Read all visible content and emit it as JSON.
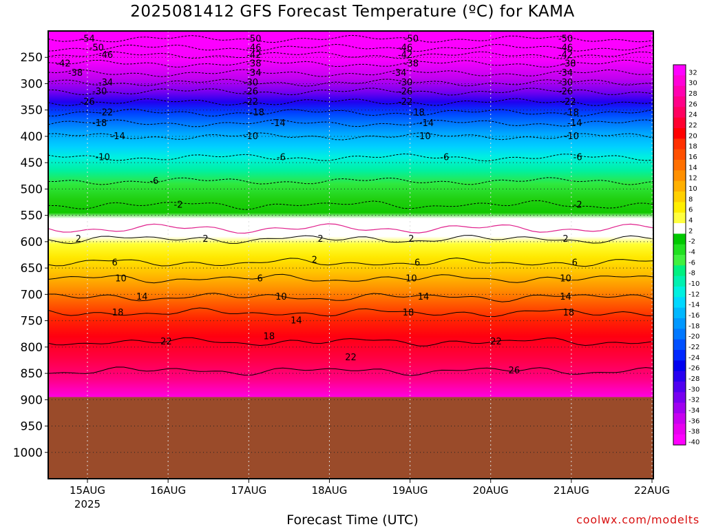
{
  "header": {
    "title": "2025081412 GFS Forecast Temperature (ºC) for KAMA"
  },
  "footer": {
    "xlabel": "Forecast Time (UTC)",
    "credit": "coolwx.com/modelts"
  },
  "chart_data": {
    "type": "heatmap",
    "title": "2025081412 GFS Forecast Temperature (ºC) for KAMA",
    "xlabel": "Forecast Time (UTC)",
    "ylabel": "",
    "x_ticks": [
      "15AUG",
      "16AUG",
      "17AUG",
      "18AUG",
      "19AUG",
      "20AUG",
      "21AUG",
      "22AUG"
    ],
    "x_tick_sub": [
      "2025",
      "",
      "",
      "",
      "",
      "",
      "",
      ""
    ],
    "x_start": "2025-08-14 12Z",
    "x_end": "2025-08-22 00Z",
    "y_ticks": [
      250,
      300,
      350,
      400,
      450,
      500,
      550,
      600,
      650,
      700,
      750,
      800,
      850,
      900,
      950,
      1000
    ],
    "y_top": 200,
    "y_bottom": 1050,
    "y_unit": "hPa",
    "terrain_below": 895,
    "terrain_color": "#9a4b2a",
    "grid": true,
    "colorbar": {
      "labels": [
        32,
        30,
        28,
        26,
        24,
        22,
        20,
        18,
        16,
        14,
        12,
        10,
        8,
        6,
        4,
        2,
        -2,
        -4,
        -6,
        -8,
        -10,
        -12,
        -14,
        -16,
        -18,
        -20,
        -22,
        -24,
        -26,
        -28,
        -30,
        -32,
        -34,
        -36,
        -38,
        -40
      ],
      "colors": [
        "#ff00ff",
        "#ff00d8",
        "#ff00b0",
        "#ff0088",
        "#ff0060",
        "#ff0030",
        "#ff0000",
        "#ff3000",
        "#ff5000",
        "#ff7000",
        "#ff9000",
        "#ffb000",
        "#ffd000",
        "#ffee00",
        "#ffff40",
        "#ffffff",
        "#00c800",
        "#20e020",
        "#40f040",
        "#00f080",
        "#00f0b0",
        "#00f0e0",
        "#00d8ff",
        "#00b8ff",
        "#0098ff",
        "#0078ff",
        "#0050ff",
        "#0028ff",
        "#0000f0",
        "#2800f0",
        "#5000f0",
        "#7800f0",
        "#a000f0",
        "#c800f0",
        "#e800f0",
        "#ff00ff"
      ]
    },
    "isotherms": [
      {
        "t": -54,
        "p": 215
      },
      {
        "t": -50,
        "p": 232
      },
      {
        "t": -46,
        "p": 246
      },
      {
        "t": -42,
        "p": 262
      },
      {
        "t": -38,
        "p": 280
      },
      {
        "t": -34,
        "p": 298
      },
      {
        "t": -30,
        "p": 315
      },
      {
        "t": -26,
        "p": 335
      },
      {
        "t": -22,
        "p": 355
      },
      {
        "t": -18,
        "p": 375
      },
      {
        "t": -14,
        "p": 400
      },
      {
        "t": -10,
        "p": 440
      },
      {
        "t": -6,
        "p": 485
      },
      {
        "t": -2,
        "p": 530
      },
      {
        "t": 2,
        "p": 595
      },
      {
        "t": 6,
        "p": 640
      },
      {
        "t": 10,
        "p": 670
      },
      {
        "t": 14,
        "p": 705
      },
      {
        "t": 18,
        "p": 735
      },
      {
        "t": 22,
        "p": 790
      },
      {
        "t": 26,
        "p": 845
      }
    ],
    "contour_labels": [
      {
        "t": "-54",
        "x": 0.065,
        "p": 215
      },
      {
        "t": "-50",
        "x": 0.08,
        "p": 232
      },
      {
        "t": "-46",
        "x": 0.095,
        "p": 246
      },
      {
        "t": "-42",
        "x": 0.025,
        "p": 262
      },
      {
        "t": "-38",
        "x": 0.045,
        "p": 280
      },
      {
        "t": "-34",
        "x": 0.095,
        "p": 298
      },
      {
        "t": "-30",
        "x": 0.085,
        "p": 315
      },
      {
        "t": "-26",
        "x": 0.065,
        "p": 335
      },
      {
        "t": "-22",
        "x": 0.095,
        "p": 355
      },
      {
        "t": "-18",
        "x": 0.085,
        "p": 375
      },
      {
        "t": "-14",
        "x": 0.115,
        "p": 400
      },
      {
        "t": "-10",
        "x": 0.09,
        "p": 440
      },
      {
        "t": "-50",
        "x": 0.34,
        "p": 215
      },
      {
        "t": "-46",
        "x": 0.34,
        "p": 232
      },
      {
        "t": "-42",
        "x": 0.34,
        "p": 246
      },
      {
        "t": "-38",
        "x": 0.34,
        "p": 262
      },
      {
        "t": "-34",
        "x": 0.34,
        "p": 280
      },
      {
        "t": "-30",
        "x": 0.335,
        "p": 298
      },
      {
        "t": "-26",
        "x": 0.335,
        "p": 315
      },
      {
        "t": "-22",
        "x": 0.335,
        "p": 335
      },
      {
        "t": "-18",
        "x": 0.345,
        "p": 355
      },
      {
        "t": "-14",
        "x": 0.38,
        "p": 375
      },
      {
        "t": "-10",
        "x": 0.335,
        "p": 400
      },
      {
        "t": "-6",
        "x": 0.385,
        "p": 440
      },
      {
        "t": "-6",
        "x": 0.175,
        "p": 485
      },
      {
        "t": "-2",
        "x": 0.215,
        "p": 530
      },
      {
        "t": "2",
        "x": 0.05,
        "p": 595
      },
      {
        "t": "2",
        "x": 0.26,
        "p": 595
      },
      {
        "t": "2",
        "x": 0.45,
        "p": 595
      },
      {
        "t": "2",
        "x": 0.44,
        "p": 635
      },
      {
        "t": "6",
        "x": 0.11,
        "p": 640
      },
      {
        "t": "6",
        "x": 0.35,
        "p": 670
      },
      {
        "t": "10",
        "x": 0.12,
        "p": 670
      },
      {
        "t": "10",
        "x": 0.385,
        "p": 705
      },
      {
        "t": "14",
        "x": 0.155,
        "p": 705
      },
      {
        "t": "14",
        "x": 0.41,
        "p": 750
      },
      {
        "t": "18",
        "x": 0.115,
        "p": 735
      },
      {
        "t": "18",
        "x": 0.365,
        "p": 780
      },
      {
        "t": "22",
        "x": 0.195,
        "p": 790
      },
      {
        "t": "22",
        "x": 0.5,
        "p": 820
      },
      {
        "t": "-50",
        "x": 0.6,
        "p": 215
      },
      {
        "t": "-46",
        "x": 0.59,
        "p": 232
      },
      {
        "t": "-42",
        "x": 0.59,
        "p": 246
      },
      {
        "t": "-38",
        "x": 0.6,
        "p": 262
      },
      {
        "t": "-34",
        "x": 0.58,
        "p": 280
      },
      {
        "t": "-30",
        "x": 0.59,
        "p": 298
      },
      {
        "t": "-26",
        "x": 0.59,
        "p": 315
      },
      {
        "t": "-22",
        "x": 0.59,
        "p": 335
      },
      {
        "t": "-18",
        "x": 0.61,
        "p": 355
      },
      {
        "t": "-14",
        "x": 0.625,
        "p": 375
      },
      {
        "t": "-10",
        "x": 0.62,
        "p": 400
      },
      {
        "t": "-6",
        "x": 0.655,
        "p": 440
      },
      {
        "t": "2",
        "x": 0.6,
        "p": 595
      },
      {
        "t": "6",
        "x": 0.61,
        "p": 640
      },
      {
        "t": "10",
        "x": 0.6,
        "p": 670
      },
      {
        "t": "14",
        "x": 0.62,
        "p": 705
      },
      {
        "t": "18",
        "x": 0.595,
        "p": 735
      },
      {
        "t": "26",
        "x": 0.77,
        "p": 845
      },
      {
        "t": "22",
        "x": 0.74,
        "p": 790
      },
      {
        "t": "-50",
        "x": 0.855,
        "p": 215
      },
      {
        "t": "-46",
        "x": 0.855,
        "p": 232
      },
      {
        "t": "-42",
        "x": 0.855,
        "p": 246
      },
      {
        "t": "-38",
        "x": 0.86,
        "p": 262
      },
      {
        "t": "-34",
        "x": 0.855,
        "p": 280
      },
      {
        "t": "-30",
        "x": 0.855,
        "p": 298
      },
      {
        "t": "-26",
        "x": 0.855,
        "p": 315
      },
      {
        "t": "-22",
        "x": 0.86,
        "p": 335
      },
      {
        "t": "-18",
        "x": 0.865,
        "p": 355
      },
      {
        "t": "-14",
        "x": 0.87,
        "p": 375
      },
      {
        "t": "-10",
        "x": 0.865,
        "p": 400
      },
      {
        "t": "-6",
        "x": 0.875,
        "p": 440
      },
      {
        "t": "-2",
        "x": 0.875,
        "p": 530
      },
      {
        "t": "2",
        "x": 0.855,
        "p": 595
      },
      {
        "t": "6",
        "x": 0.87,
        "p": 640
      },
      {
        "t": "10",
        "x": 0.855,
        "p": 670
      },
      {
        "t": "14",
        "x": 0.855,
        "p": 705
      },
      {
        "t": "18",
        "x": 0.86,
        "p": 735
      }
    ]
  }
}
